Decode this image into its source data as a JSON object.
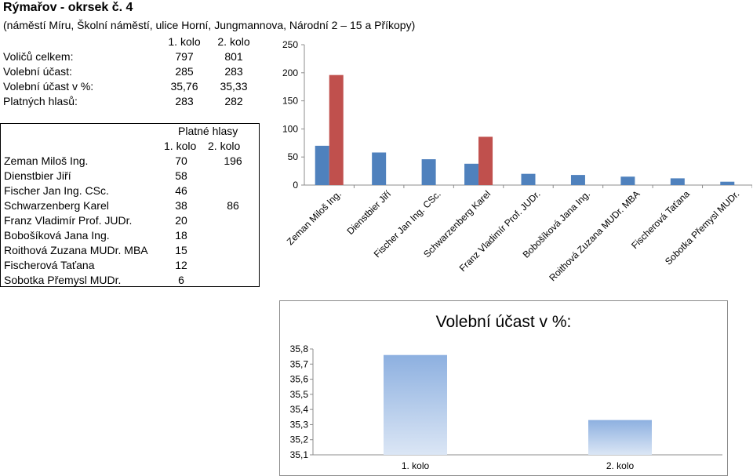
{
  "header": {
    "title": "Rýmařov - okrsek č. 4",
    "subtitle": "(náměstí Míru, Školní náměstí, ulice Horní, Jungmannova, Národní 2 – 15 a Příkopy)"
  },
  "stats": {
    "col1": "1. kolo",
    "col2": "2. kolo",
    "rows": [
      {
        "label": "Voličů celkem:",
        "v1": "797",
        "v2": "801"
      },
      {
        "label": "Volební účast:",
        "v1": "285",
        "v2": "283"
      },
      {
        "label": "Volební účast v %:",
        "v1": "35,76",
        "v2": "35,33"
      },
      {
        "label": "Platných hlasů:",
        "v1": "283",
        "v2": "282"
      }
    ]
  },
  "candidates": {
    "header": "Platné hlasy",
    "col1": "1. kolo",
    "col2": "2. kolo",
    "rows": [
      {
        "name": "Zeman Miloš Ing.",
        "v1": "70",
        "v2": "196"
      },
      {
        "name": "Dienstbier Jiří",
        "v1": "58",
        "v2": ""
      },
      {
        "name": "Fischer Jan Ing. CSc.",
        "v1": "46",
        "v2": ""
      },
      {
        "name": "Schwarzenberg Karel",
        "v1": "38",
        "v2": "86"
      },
      {
        "name": "Franz Vladimír Prof. JUDr.",
        "v1": "20",
        "v2": ""
      },
      {
        "name": "Bobošíková Jana Ing.",
        "v1": "18",
        "v2": ""
      },
      {
        "name": "Roithová Zuzana MUDr. MBA",
        "v1": "15",
        "v2": ""
      },
      {
        "name": "Fischerová Taťana",
        "v1": "12",
        "v2": ""
      },
      {
        "name": "Sobotka Přemysl MUDr.",
        "v1": "6",
        "v2": ""
      }
    ]
  },
  "chart_data": [
    {
      "type": "bar",
      "title": "",
      "categories": [
        "Zeman Miloš Ing.",
        "Dienstbier Jiří",
        "Fischer Jan Ing. CSc.",
        "Schwarzenberg Karel",
        "Franz Vladimír Prof. JUDr.",
        "Bobošíková Jana Ing.",
        "Roithová Zuzana MUDr. MBA",
        "Fischerová Taťana",
        "Sobotka Přemysl MUDr."
      ],
      "series": [
        {
          "values": [
            70,
            58,
            46,
            38,
            20,
            18,
            15,
            12,
            6
          ],
          "color": "#4f81bd"
        },
        {
          "values": [
            196,
            null,
            null,
            86,
            null,
            null,
            null,
            null,
            null
          ],
          "color": "#c0504d"
        }
      ],
      "ylim": [
        0,
        250
      ],
      "yticks": [
        "0",
        "50",
        "100",
        "150",
        "200",
        "250"
      ],
      "grid": false,
      "legend": "none"
    },
    {
      "type": "bar",
      "title": "Volební účast v %:",
      "categories": [
        "1. kolo",
        "2. kolo"
      ],
      "values": [
        35.76,
        35.33
      ],
      "ylim": [
        35.1,
        35.8
      ],
      "yticks": [
        "35,1",
        "35,2",
        "35,3",
        "35,4",
        "35,5",
        "35,6",
        "35,7",
        "35,8"
      ],
      "color": "#95b3d7",
      "grid": false,
      "legend": "none"
    }
  ]
}
